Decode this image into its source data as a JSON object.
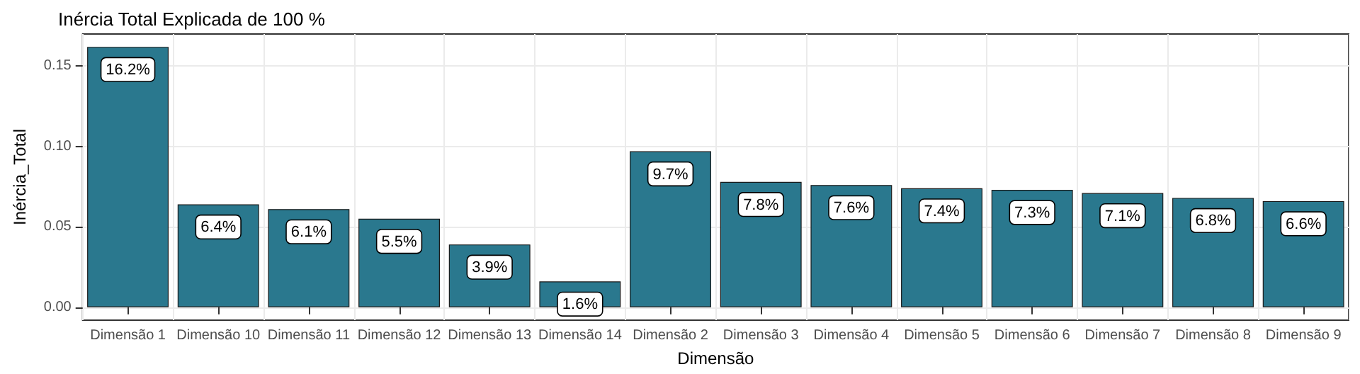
{
  "chart_data": {
    "type": "bar",
    "title": "Inércia Total Explicada de 100 %",
    "xlabel": "Dimensão",
    "ylabel": "Inércia_Total",
    "categories": [
      "Dimensão 1",
      "Dimensão 10",
      "Dimensão 11",
      "Dimensão 12",
      "Dimensão 13",
      "Dimensão 14",
      "Dimensão 2",
      "Dimensão 3",
      "Dimensão 4",
      "Dimensão 5",
      "Dimensão 6",
      "Dimensão 7",
      "Dimensão 8",
      "Dimensão 9"
    ],
    "values": [
      0.162,
      0.064,
      0.061,
      0.055,
      0.039,
      0.016,
      0.097,
      0.078,
      0.076,
      0.074,
      0.073,
      0.071,
      0.068,
      0.066
    ],
    "value_labels": [
      "16.2%",
      "6.4%",
      "6.1%",
      "5.5%",
      "3.9%",
      "1.6%",
      "9.7%",
      "7.8%",
      "7.6%",
      "7.4%",
      "7.3%",
      "7.1%",
      "6.8%",
      "6.6%"
    ],
    "color": "#2a788e",
    "ylim": [
      -0.0081,
      0.17
    ],
    "yticks": [
      {
        "value": 0,
        "label": "0.00"
      },
      {
        "value": 0.05,
        "label": "0.05"
      },
      {
        "value": 0.1,
        "label": "0.10"
      },
      {
        "value": 0.15,
        "label": "0.15"
      }
    ],
    "grid": true
  }
}
